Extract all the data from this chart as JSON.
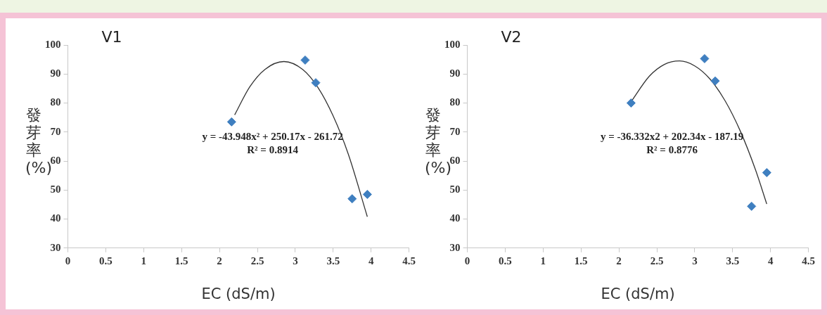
{
  "chart_data": [
    {
      "type": "scatter",
      "title": "V1",
      "xlabel": "EC (dS/m)",
      "ylabel": "發芽率(%)",
      "xlim": [
        0,
        4.5
      ],
      "xticks": [
        0,
        0.5,
        1,
        1.5,
        2,
        2.5,
        3,
        3.5,
        4,
        4.5
      ],
      "ylim": [
        30,
        100
      ],
      "yticks": [
        30,
        40,
        50,
        60,
        70,
        80,
        90,
        100
      ],
      "grid": false,
      "legend": false,
      "annotations": [
        "y = -43.948x² + 250.17x - 261.72",
        "R² = 0.8914"
      ],
      "series": [
        {
          "marker": "diamond",
          "color": "#3f7fc0",
          "x": [
            2.16,
            3.13,
            3.27,
            3.75,
            3.95
          ],
          "values": [
            73.5,
            94.8,
            87,
            47,
            48.5
          ]
        },
        {
          "type": "line",
          "marker": "none",
          "color": "#333333",
          "x": [
            2.2,
            2.4,
            2.6,
            2.85,
            3.1,
            3.3,
            3.5,
            3.7,
            3.95
          ],
          "values": [
            75.9,
            85.6,
            91.6,
            94.3,
            91.5,
            85.3,
            75.5,
            62.3,
            40.8
          ]
        }
      ]
    },
    {
      "type": "scatter",
      "title": "V2",
      "xlabel": "EC (dS/m)",
      "ylabel": "發芽率(%)",
      "xlim": [
        0,
        4.5
      ],
      "xticks": [
        0,
        0.5,
        1,
        1.5,
        2,
        2.5,
        3,
        3.5,
        4,
        4.5
      ],
      "ylim": [
        30,
        100
      ],
      "yticks": [
        30,
        40,
        50,
        60,
        70,
        80,
        90,
        100
      ],
      "grid": false,
      "legend": false,
      "annotations": [
        "y = -36.332x2 + 202.34x - 187.19",
        "R² = 0.8776"
      ],
      "series": [
        {
          "marker": "diamond",
          "color": "#3f7fc0",
          "x": [
            2.16,
            3.13,
            3.27,
            3.75,
            3.95
          ],
          "values": [
            80,
            95.3,
            87.6,
            44.4,
            56
          ]
        },
        {
          "type": "line",
          "marker": "none",
          "color": "#333333",
          "x": [
            2.16,
            2.4,
            2.6,
            2.8,
            3.0,
            3.2,
            3.4,
            3.6,
            3.8,
            3.95
          ],
          "values": [
            80.4,
            89.2,
            93.3,
            94.5,
            92.8,
            88.3,
            80.8,
            70.4,
            57.1,
            45.2
          ]
        }
      ]
    }
  ]
}
